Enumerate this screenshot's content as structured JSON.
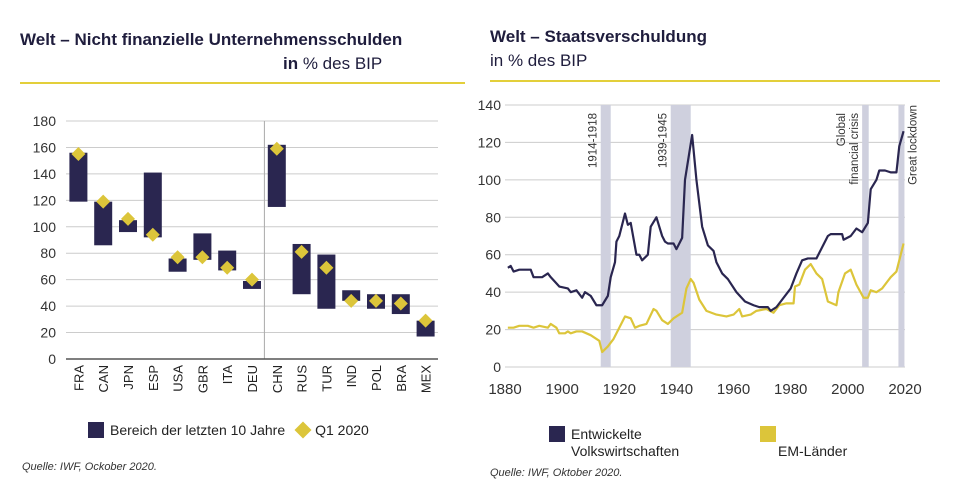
{
  "left": {
    "title": "Welt – Nicht finanzielle Unternehmensschulden",
    "subtitle_pre": "in",
    "subtitle_unit": "% des BIP",
    "legend": [
      "Bereich der letzten 10 Jahre",
      "Q1 2020"
    ],
    "source": "Quelle: IWF, Ockober 2020."
  },
  "right": {
    "title": "Welt – Staatsverschuldung",
    "subtitle_pre": "in",
    "subtitle_unit": "% des BIP",
    "legend": [
      "Entwickelte Volkswirtschaften",
      "EM-Länder"
    ],
    "source": "Quelle: IWF, Oktober 2020."
  },
  "colors": {
    "dark": "#2a2650",
    "yellow": "#dcc53a",
    "band": "#cfd0de",
    "rule": "#e3cf3a"
  },
  "chart_data": [
    {
      "type": "bar",
      "subtype": "floating-range-with-marker",
      "categories": [
        "FRA",
        "CAN",
        "JPN",
        "ESP",
        "USA",
        "GBR",
        "ITA",
        "DEU",
        "CHN",
        "RUS",
        "TUR",
        "IND",
        "POL",
        "BRA",
        "MEX"
      ],
      "series": [
        {
          "name": "Bereich der letzten 10 Jahre",
          "min": [
            119,
            86,
            96,
            92,
            66,
            75,
            67,
            53,
            115,
            49,
            38,
            44,
            38,
            34,
            17
          ],
          "max": [
            156,
            119,
            105,
            141,
            76,
            95,
            82,
            59,
            162,
            87,
            79,
            52,
            49,
            49,
            29
          ]
        },
        {
          "name": "Q1 2020",
          "values": [
            155,
            119,
            106,
            94,
            77,
            77,
            69,
            60,
            159,
            81,
            69,
            44,
            44,
            42,
            29
          ]
        }
      ],
      "ylim": [
        0,
        180
      ],
      "yticks": [
        0,
        20,
        40,
        60,
        80,
        100,
        120,
        140,
        160,
        180
      ],
      "grid": true,
      "legend": "bottom"
    },
    {
      "type": "line",
      "xlim": [
        1880,
        2020
      ],
      "ylim": [
        0,
        140
      ],
      "xticks": [
        1880,
        1900,
        1920,
        1940,
        1960,
        1980,
        2000,
        2020
      ],
      "yticks": [
        0,
        20,
        40,
        60,
        80,
        100,
        120,
        140
      ],
      "grid": true,
      "legend": "bottom",
      "bands": [
        {
          "label": "1914-1918",
          "from": 1913.5,
          "to": 1917
        },
        {
          "label": "1939-1945",
          "from": 1938,
          "to": 1945
        },
        {
          "label": "Global financial crisis",
          "from": 2005,
          "to": 2007.3
        },
        {
          "label": "Great lockdown",
          "from": 2017.7,
          "to": 2019.8
        }
      ],
      "series": [
        {
          "name": "Entwickelte Volkswirtschaften",
          "x": [
            1881,
            1882,
            1883,
            1885,
            1889,
            1890,
            1893,
            1895,
            1896,
            1899,
            1902,
            1903,
            1905,
            1907,
            1908,
            1910,
            1912,
            1914,
            1916,
            1917,
            1918.5,
            1919,
            1920,
            1922,
            1923,
            1924,
            1926,
            1927,
            1928,
            1930,
            1931,
            1933,
            1935,
            1936,
            1937,
            1939,
            1940,
            1942,
            1943,
            1945.5,
            1947,
            1949,
            1951,
            1953,
            1954,
            1956,
            1958,
            1961,
            1964,
            1967,
            1969,
            1972,
            1973,
            1975,
            1977,
            1980,
            1982,
            1984,
            1986,
            1989,
            1993,
            1994,
            1998,
            1998.5,
            2001,
            2003,
            2005,
            2007,
            2008,
            2010,
            2011,
            2013,
            2015,
            2017,
            2018,
            2019.5
          ],
          "y": [
            53,
            54,
            51,
            52,
            52,
            48,
            48,
            50,
            48,
            43,
            42,
            40,
            41,
            37,
            40,
            38,
            33,
            33,
            38,
            48,
            56,
            67,
            70,
            82,
            76,
            77,
            60,
            60,
            57,
            60,
            75,
            80,
            70,
            67,
            66,
            66,
            63,
            69,
            100,
            124,
            100,
            75,
            65,
            62,
            56,
            50,
            47,
            40,
            35,
            33,
            32,
            32,
            30,
            32,
            36,
            42,
            50,
            57,
            58,
            58,
            70,
            71,
            71,
            68,
            70,
            74,
            72,
            77,
            95,
            100,
            105,
            105,
            104,
            104,
            118,
            126
          ]
        },
        {
          "name": "EM-Länder",
          "x": [
            1881,
            1883,
            1885,
            1888,
            1890,
            1892,
            1895,
            1896,
            1898,
            1899,
            1901,
            1902,
            1903,
            1905,
            1907,
            1910,
            1912,
            1913,
            1914,
            1916,
            1918,
            1920,
            1922,
            1924,
            1925.5,
            1927,
            1929.5,
            1932,
            1933,
            1935,
            1937,
            1939,
            1941,
            1942,
            1943.5,
            1945,
            1946,
            1948,
            1950.5,
            1954,
            1957.5,
            1960,
            1962,
            1963,
            1966,
            1968,
            1971.5,
            1974,
            1976,
            1978.5,
            1981,
            1981.5,
            1983,
            1985,
            1987,
            1989,
            1991,
            1993,
            1996,
            1996.7,
            1999,
            2001,
            2003,
            2005.5,
            2007,
            2008,
            2010,
            2012,
            2015,
            2017,
            2019.5
          ],
          "y": [
            21,
            21,
            22,
            22,
            21,
            22,
            21,
            23,
            21,
            18,
            18,
            19,
            18,
            19,
            19,
            17,
            15,
            14,
            8,
            11,
            15,
            21,
            27,
            26,
            21,
            22,
            23,
            31,
            30,
            25,
            23,
            26,
            28,
            29,
            42,
            47,
            45,
            36,
            30,
            28,
            27,
            28,
            31,
            27,
            28,
            30,
            31,
            29,
            33,
            34,
            34,
            43,
            44,
            52,
            55,
            50,
            47,
            35,
            33,
            40,
            50,
            52,
            44,
            37,
            37,
            41,
            40,
            42,
            48,
            51,
            66
          ]
        }
      ]
    }
  ]
}
